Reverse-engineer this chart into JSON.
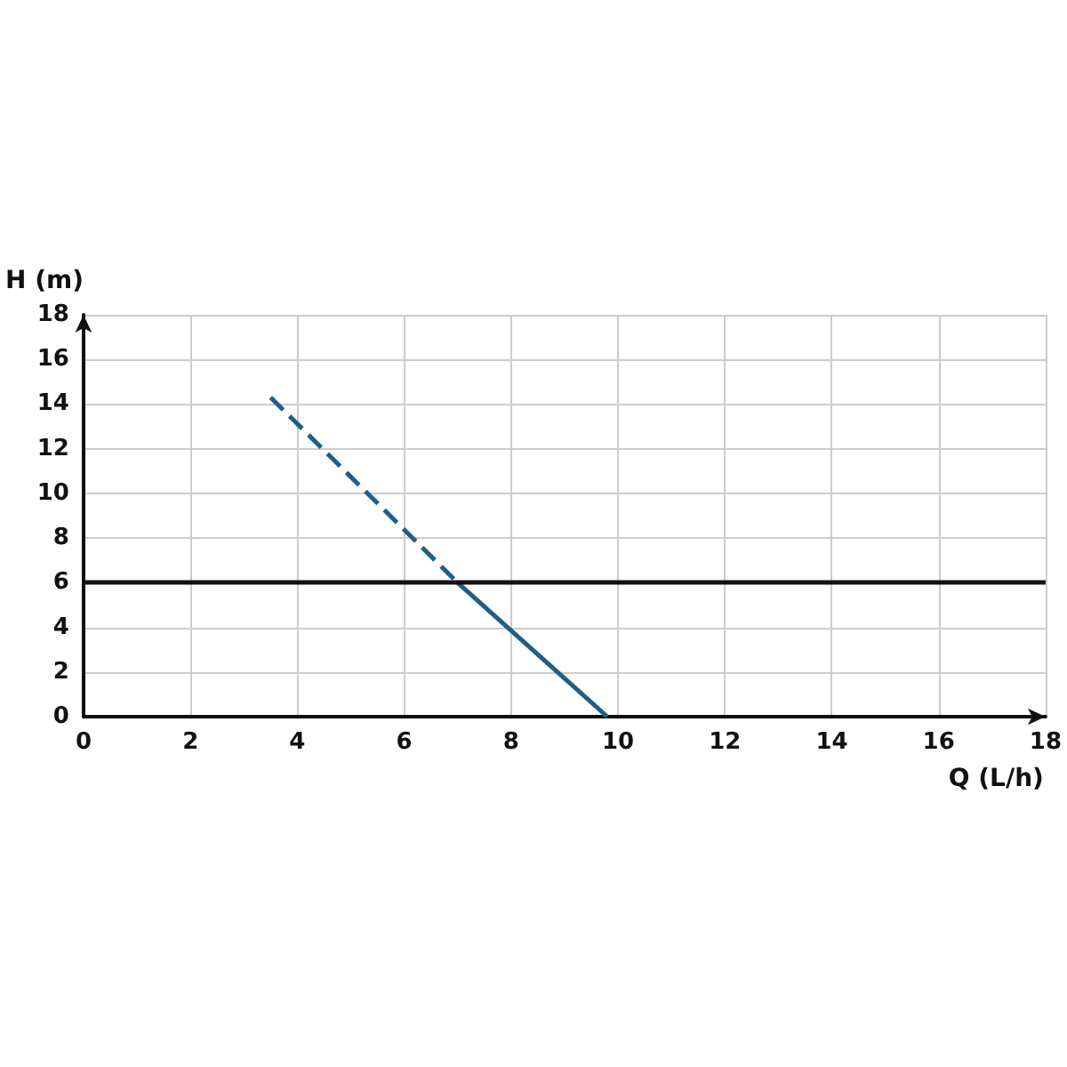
{
  "chart_data": {
    "type": "line",
    "xlabel": "Q (L/h)",
    "ylabel": "H (m)",
    "xlim": [
      0,
      18
    ],
    "xticks": [
      0,
      2,
      4,
      6,
      8,
      10,
      12,
      14,
      16,
      18
    ],
    "ylim": [
      0,
      18
    ],
    "yticks": [
      0,
      2,
      4,
      6,
      8,
      10,
      12,
      14,
      16,
      18
    ],
    "grid": true,
    "marker": "none",
    "series": [
      {
        "color": "#1f5f85",
        "line_style": "dashed",
        "x": [
          3.5,
          7.0
        ],
        "values": [
          14.3,
          6.0
        ]
      },
      {
        "color": "#1f5f85",
        "line_style": "solid",
        "x": [
          7.0,
          9.8
        ],
        "values": [
          6.0,
          0
        ]
      }
    ],
    "ref_lines": [
      {
        "axis": "y",
        "value": 6,
        "color": "#111111",
        "line_style": "solid"
      }
    ]
  }
}
